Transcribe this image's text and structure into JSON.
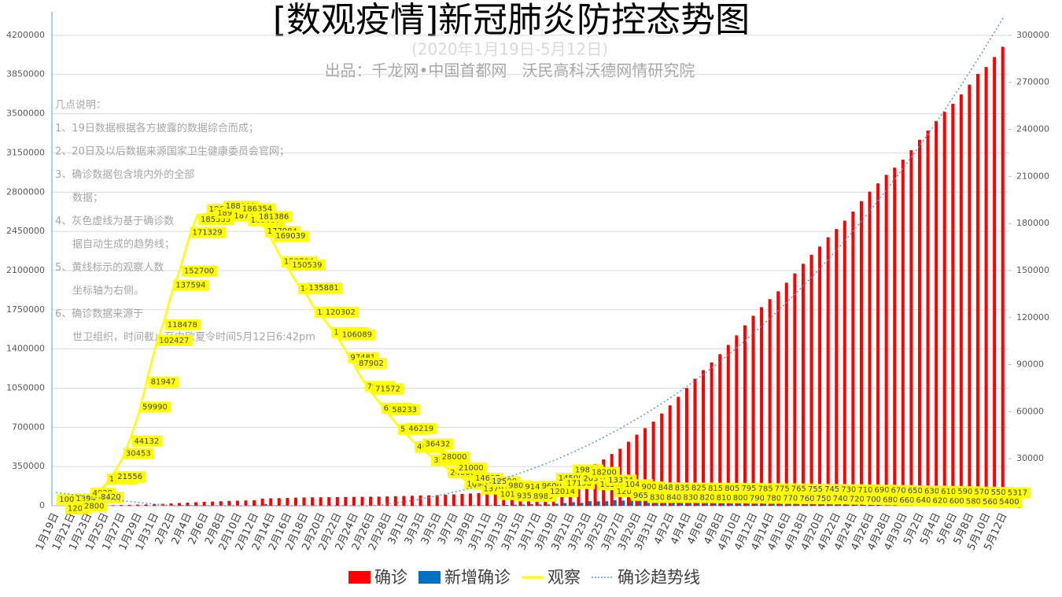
{
  "chart_data": {
    "type": "bar-line",
    "title": "[数观疫情]新冠肺炎防控态势图",
    "subtitle": "(2020年1月19日-5月12日)",
    "producer": "出品：千龙网•中国首都网   沃民高科沃德网情研究院",
    "notes": [
      "几点说明：",
      "1、19日数据根据各方披露的数据综合而成；",
      "2、20日及以后数据来源国家卫生健康委员会官网；",
      "3、确诊数据包含境内外的全部",
      "数据；",
      "4、灰色虚线为基于确诊数",
      "据自动生成的趋势线；",
      "5、黄线标示的观察人数",
      "坐标轴为右侧。",
      "6、确诊数据来源于",
      "世卫组织，时间截止至中欧夏令时间5月12日6:42pm"
    ],
    "categories": [
      "1月19日",
      null,
      "1月21日",
      null,
      "1月23日",
      null,
      "1月25日",
      null,
      "1月27日",
      null,
      "1月29日",
      null,
      "1月31日",
      null,
      "2月2日",
      null,
      "2月4日",
      null,
      "2月6日",
      null,
      "2月8日",
      null,
      "2月10日",
      null,
      "2月12日",
      null,
      "2月14日",
      null,
      "2月16日",
      null,
      "2月18日",
      null,
      "2月20日",
      null,
      "2月22日",
      null,
      "2月24日",
      null,
      "2月26日",
      null,
      "2月28日",
      null,
      "3月1日",
      null,
      "3月3日",
      null,
      "3月5日",
      null,
      "3月7日",
      null,
      "3月9日",
      null,
      "3月11日",
      null,
      "3月13日",
      null,
      "3月15日",
      null,
      "3月17日",
      null,
      "3月19日",
      null,
      "3月21日",
      null,
      "3月23日",
      null,
      "3月25日",
      null,
      "3月27日",
      null,
      "3月29日",
      null,
      "3月31日",
      null,
      "4月2日",
      null,
      "4月4日",
      null,
      "4月6日",
      null,
      "4月8日",
      null,
      "4月10日",
      null,
      "4月12日",
      null,
      "4月14日",
      null,
      "4月16日",
      null,
      "4月18日",
      null,
      "4月20日",
      null,
      "4月22日",
      null,
      "4月24日",
      null,
      "4月26日",
      null,
      "4月28日",
      null,
      "4月30日",
      null,
      "5月2日",
      null,
      "5月4日",
      null,
      "5月6日",
      null,
      "5月8日",
      null,
      "5月10日",
      null,
      "5月12日"
    ],
    "series": [
      {
        "name": "确诊",
        "color": "#ff0000",
        "kind": "bar",
        "values": [
          282,
          314,
          580,
          846,
          1320,
          2014,
          2798,
          4593,
          6065,
          7818,
          9826,
          11953,
          14557,
          17391,
          20630,
          24554,
          28276,
          31481,
          34886,
          37558,
          40554,
          43103,
          45171,
          46997,
          49053,
          64000,
          66500,
          68500,
          70500,
          72500,
          74300,
          75200,
          75700,
          76800,
          77800,
          78800,
          79300,
          80000,
          80900,
          81800,
          83100,
          84900,
          87000,
          89000,
          91000,
          93000,
          95300,
          98200,
          101800,
          105800,
          109600,
          113700,
          118300,
          125300,
          132800,
          142500,
          153500,
          167500,
          179100,
          191100,
          209800,
          234100,
          266100,
          292100,
          332900,
          372800,
          413500,
          462700,
          509200,
          571700,
          634800,
          693200,
          750900,
          823600,
          896500,
          972600,
          1051600,
          1133800,
          1210900,
          1279700,
          1353400,
          1436200,
          1521300,
          1610900,
          1696600,
          1773100,
          1844900,
          1914900,
          1991600,
          2074500,
          2160200,
          2241400,
          2314600,
          2397200,
          2471100,
          2544800,
          2626300,
          2719900,
          2804800,
          2878200,
          2954200,
          3018900,
          3090400,
          3175200,
          3267200,
          3349800,
          3435900,
          3517300,
          3588700,
          3672200,
          3759900,
          3855800,
          3917400,
          4006300,
          4098018
        ]
      },
      {
        "name": "新增确诊",
        "color": "#0070c0",
        "kind": "bar",
        "values": [
          77,
          32,
          266,
          266,
          474,
          694,
          784,
          1795,
          1472,
          1753,
          2008,
          2127,
          2604,
          2834,
          3239,
          3924,
          3722,
          3205,
          3405,
          2672,
          2996,
          2549,
          2068,
          1826,
          2056,
          14947,
          2500,
          2000,
          2000,
          2000,
          1800,
          900,
          500,
          1100,
          1000,
          1000,
          500,
          700,
          900,
          900,
          1300,
          1800,
          2100,
          2000,
          2000,
          2000,
          2300,
          2900,
          3600,
          4000,
          3800,
          4100,
          4600,
          7000,
          7500,
          9700,
          11000,
          14000,
          11600,
          12000,
          18700,
          24300,
          32000,
          26000,
          40800,
          39900,
          40700,
          49200,
          46500,
          62500,
          63100,
          58400,
          57700,
          72700,
          72900,
          76100,
          79000,
          82200,
          77100,
          68800,
          73700,
          82800,
          85100,
          89600,
          85700,
          76500,
          71800,
          70000,
          76700,
          82900,
          85700,
          81200,
          73200,
          82600,
          73900,
          73700,
          81500,
          93600,
          84900,
          73400,
          76000,
          64700,
          71500,
          84800,
          92000,
          82600,
          86100,
          81400,
          71400,
          83500,
          87700,
          95900,
          61600,
          88900,
          84290
        ]
      },
      {
        "name": "观察",
        "color": "#ffff00",
        "kind": "line",
        "axis": "y2",
        "values": [
          1000,
          1200,
          1394,
          2800,
          4928,
          8420,
          13967,
          21556,
          30453,
          44132,
          59990,
          81947,
          102427,
          118478,
          137594,
          152700,
          171329,
          185555,
          186045,
          189660,
          188183,
          187728,
          186354,
          185037,
          181386,
          177984,
          169039,
          158764,
          150539,
          141552,
          135881,
          126363,
          120302,
          113564,
          106089,
          97481,
          87902,
          79108,
          71572,
          65225,
          58233,
          51856,
          46219,
          40651,
          36432,
          32000,
          28000,
          24000,
          21000,
          16900,
          14607,
          13701,
          12500,
          10189,
          9800,
          9351,
          9140,
          8989,
          9600,
          12014,
          14500,
          17198,
          19853,
          20314,
          18200,
          16500,
          13334,
          12000,
          10435,
          9655,
          9000,
          8309,
          8484,
          8400,
          8350,
          8300,
          8250,
          8200,
          8150,
          8100,
          8050,
          8000,
          7950,
          7900,
          7850,
          7800,
          7750,
          7700,
          7650,
          7600,
          7550,
          7500,
          7450,
          7400,
          7300,
          7200,
          7100,
          7000,
          6900,
          6800,
          6700,
          6600,
          6500,
          6400,
          6300,
          6200,
          6100,
          6000,
          5900,
          5800,
          5700,
          5600,
          5500,
          5400,
          5317
        ]
      }
    ],
    "trendline": {
      "name": "确诊趋势线",
      "color": "#5b9bd5",
      "of": "确诊"
    },
    "ylim": [
      0,
      4410000
    ],
    "yticks": [
      0,
      350000,
      700000,
      1050000,
      1400000,
      1750000,
      2100000,
      2450000,
      2800000,
      3150000,
      3500000,
      3850000,
      4200000
    ],
    "y2lim": [
      0,
      315000
    ],
    "y2ticks": [
      0,
      30000,
      60000,
      90000,
      120000,
      150000,
      180000,
      210000,
      240000,
      270000,
      300000
    ],
    "grid": true
  }
}
